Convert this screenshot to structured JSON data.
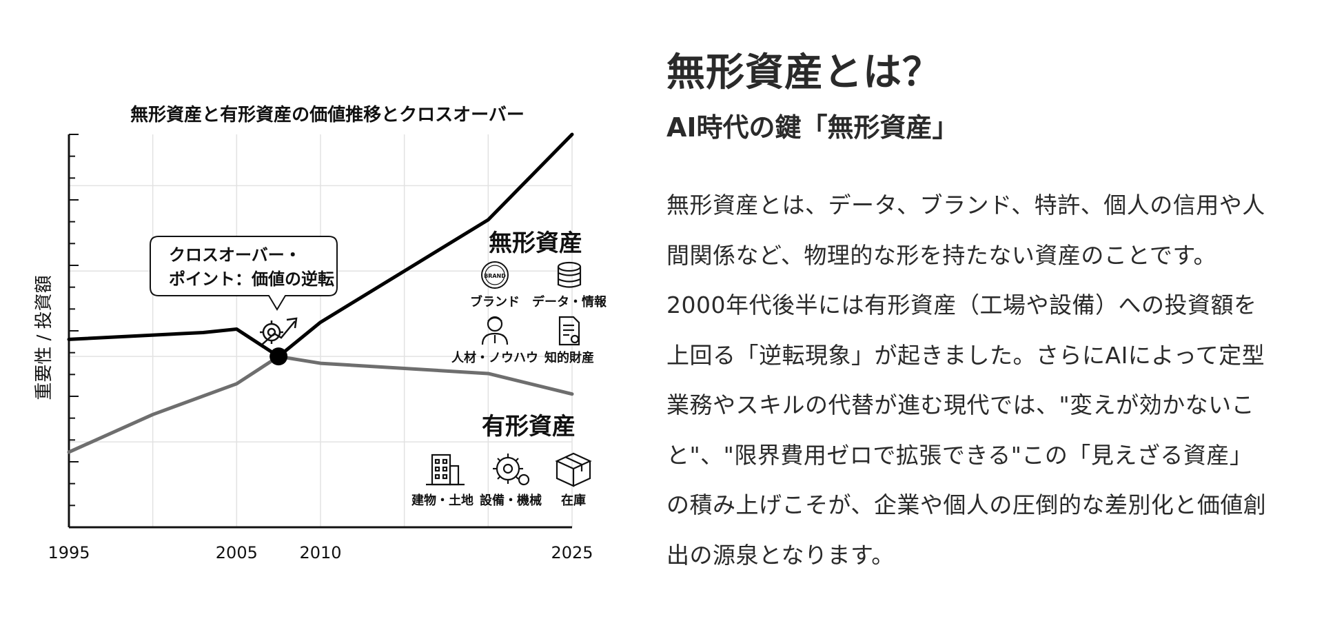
{
  "chart_data": {
    "type": "line",
    "title": "無形資産と有形資産の価値推移とクロスオーバー",
    "ylabel": "重要性 / 投資額",
    "x_ticks": [
      "1995",
      "2005",
      "2010",
      "2025"
    ],
    "xlim": [
      1995,
      2025
    ],
    "grid": true,
    "series": [
      {
        "name": "無形資産",
        "color": "#000000",
        "points": [
          [
            1995,
            5.5
          ],
          [
            2003,
            5.7
          ],
          [
            2005,
            5.8
          ],
          [
            2007.5,
            5.0
          ],
          [
            2010,
            6.0
          ],
          [
            2020,
            9.0
          ],
          [
            2025,
            11.5
          ]
        ]
      },
      {
        "name": "有形資産",
        "color": "#6e6e6e",
        "points": [
          [
            1995,
            2.2
          ],
          [
            2000,
            3.3
          ],
          [
            2005,
            4.2
          ],
          [
            2007.5,
            5.0
          ],
          [
            2010,
            4.8
          ],
          [
            2020,
            4.5
          ],
          [
            2025,
            3.9
          ]
        ]
      }
    ],
    "annotation": {
      "text_line1": "クロスオーバー・",
      "text_line2": "ポイント：価値の逆転",
      "x": 2007.5,
      "y": 5.0
    },
    "intangible_icons": [
      {
        "label": "ブランド",
        "icon": "brand-badge-icon",
        "badge_text": "BRAND"
      },
      {
        "label": "データ・情報",
        "icon": "database-icon"
      },
      {
        "label": "人材・ノウハウ",
        "icon": "person-icon"
      },
      {
        "label": "知的財産",
        "icon": "certificate-icon"
      }
    ],
    "tangible_icons": [
      {
        "label": "建物・土地",
        "icon": "building-icon"
      },
      {
        "label": "設備・機械",
        "icon": "gear-icon"
      },
      {
        "label": "在庫",
        "icon": "box-icon"
      }
    ]
  },
  "article": {
    "heading": "無形資産とは？",
    "subheading": "AI時代の鍵「無形資産」",
    "body_lines": [
      "無形資産とは、データ、ブランド、特許、個人の信用や人",
      "間関係など、物理的な形を持たない資産のことです。",
      "2000年代後半には有形資産（工場や設備）への投資額を",
      "上回る「逆転現象」が起きました。さらにAIによって定型",
      "業務やスキルの代替が進む現代では、\"変えが効かないこ",
      "と\"、\"限界費用ゼロで拡張できる\"この「見えざる資産」",
      "の積み上げこそが、企業や個人の圧倒的な差別化と価値創",
      "出の源泉となります。"
    ]
  }
}
